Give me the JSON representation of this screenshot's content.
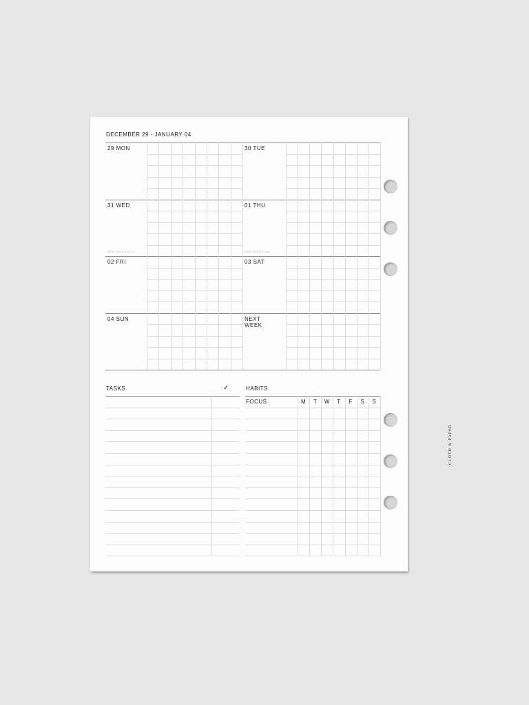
{
  "header": {
    "title": "DECEMBER 29 - JANUARY 04"
  },
  "days": [
    {
      "label": "29 MON",
      "note": ""
    },
    {
      "label": "30 TUE",
      "note": ""
    },
    {
      "label": "31 WED",
      "note": "NEW YEAR'S EVE"
    },
    {
      "label": "01 THU",
      "note": "NEW YEAR'S DAY"
    },
    {
      "label": "02 FRI",
      "note": ""
    },
    {
      "label": "03 SAT",
      "note": ""
    },
    {
      "label": "04 SUN",
      "note": ""
    },
    {
      "label": "NEXT\nWEEK",
      "note": ""
    }
  ],
  "tasks": {
    "title": "TASKS",
    "check_icon": "✓"
  },
  "habits": {
    "title": "HABITS",
    "focus_label": "FOCUS",
    "days": [
      "M",
      "T",
      "W",
      "T",
      "F",
      "S",
      "S"
    ]
  },
  "brand": "CLOTH & PAPER"
}
